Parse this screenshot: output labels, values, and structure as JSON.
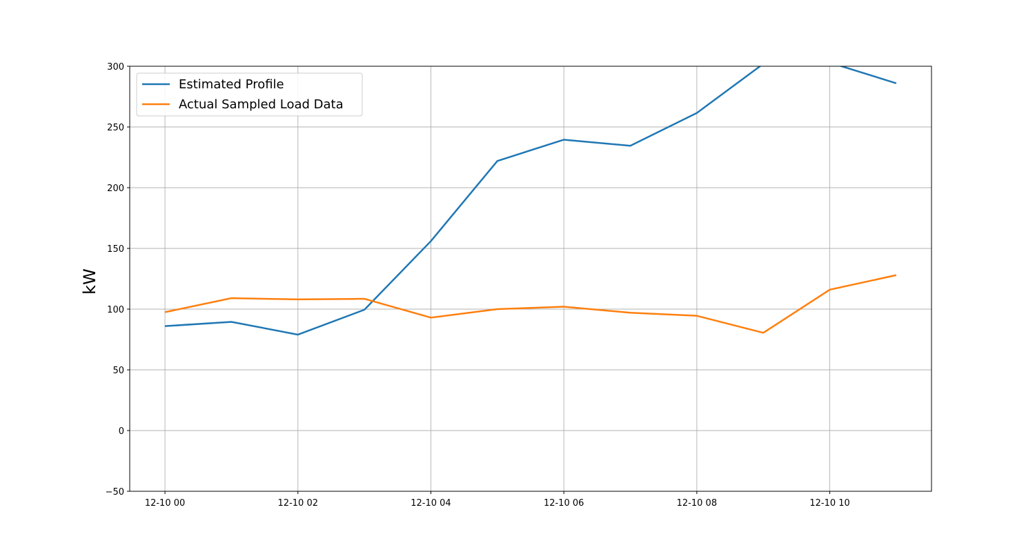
{
  "chart_data": {
    "type": "line",
    "title": "",
    "xlabel": "",
    "ylabel": "kW",
    "ylim": [
      -50,
      300
    ],
    "xlim_hours": [
      -0.53,
      11.53
    ],
    "x": [
      "12-10 00",
      "12-10 01",
      "12-10 02",
      "12-10 03",
      "12-10 04",
      "12-10 05",
      "12-10 06",
      "12-10 07",
      "12-10 08",
      "12-10 09",
      "12-10 10",
      "12-10 11"
    ],
    "x_ticks": [
      "12-10 00",
      "12-10 02",
      "12-10 04",
      "12-10 06",
      "12-10 08",
      "12-10 10"
    ],
    "y_ticks": [
      -50,
      0,
      50,
      100,
      150,
      200,
      250,
      300
    ],
    "y_tick_labels": [
      "−50",
      "0",
      "50",
      "100",
      "150",
      "200",
      "250",
      "300"
    ],
    "grid": true,
    "legend_position": "top-left",
    "series": [
      {
        "name": "Estimated Profile",
        "color": "#1f77b4",
        "values": [
          86,
          89.5,
          79,
          99.5,
          156,
          222,
          239.5,
          234.5,
          261.5,
          302,
          303,
          286
        ]
      },
      {
        "name": "Actual Sampled Load Data",
        "color": "#ff7f0e",
        "values": [
          97.5,
          109,
          108,
          108.5,
          93,
          100,
          102,
          97,
          94.5,
          80.5,
          116,
          128
        ]
      }
    ]
  }
}
